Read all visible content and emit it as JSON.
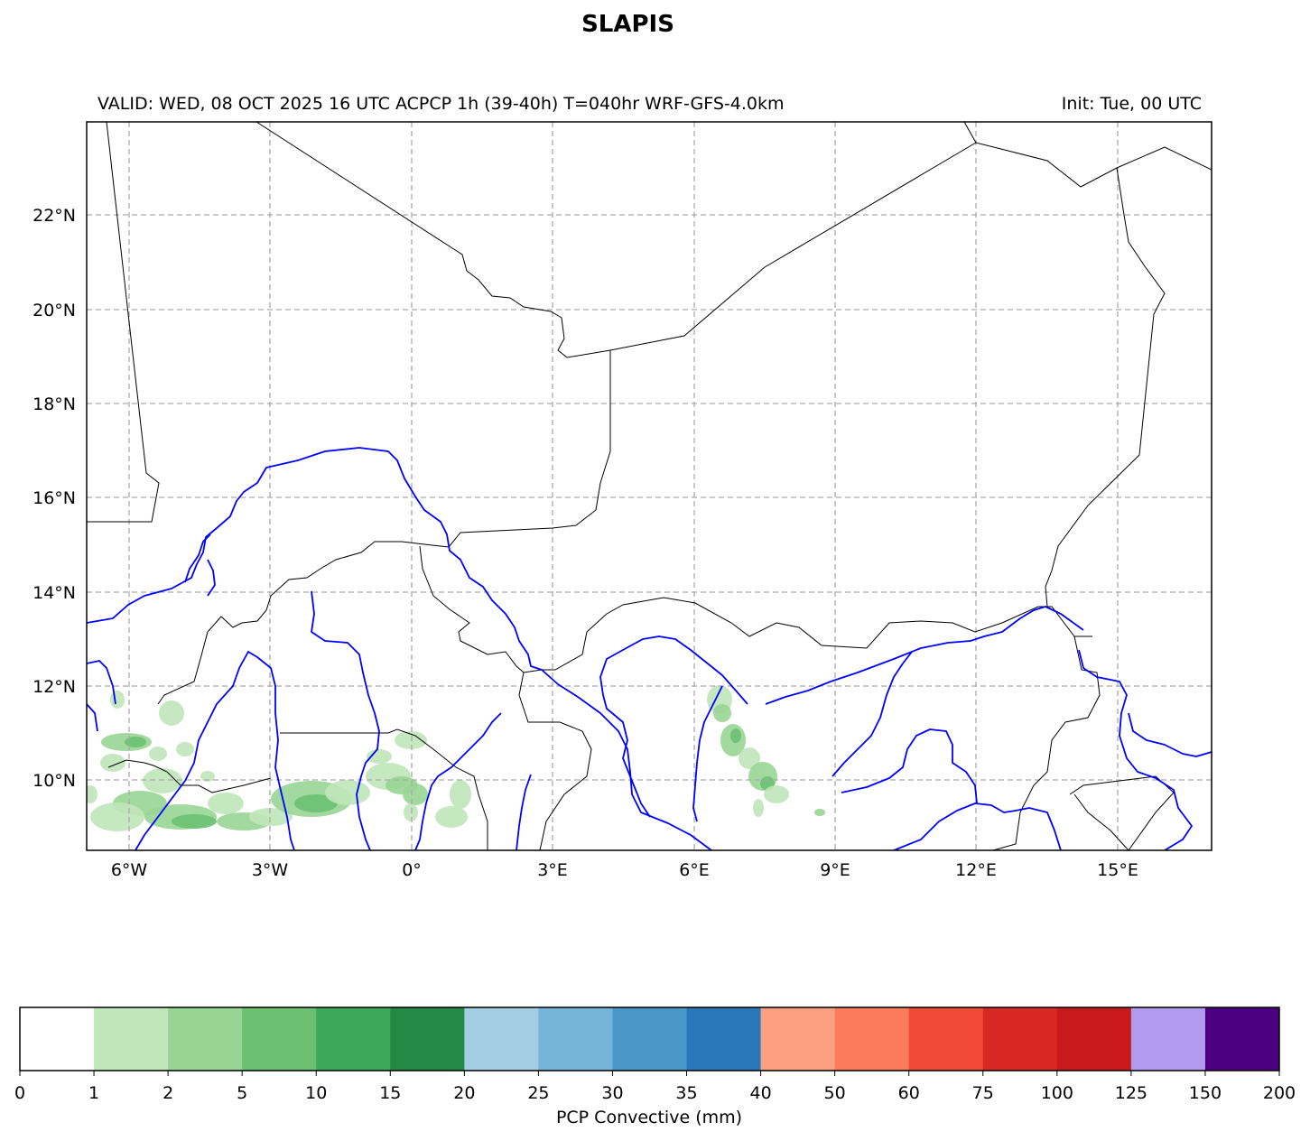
{
  "header": {
    "title": "SLAPIS",
    "valid_line": "VALID: WED, 08 OCT 2025 16 UTC   ACPCP 1h (39-40h) T=040hr WRF-GFS-4.0km",
    "init_line": "Init: Tue, 00 UTC"
  },
  "map": {
    "lon_labels": [
      "6°W",
      "3°W",
      "0°",
      "3°E",
      "6°E",
      "9°E",
      "12°E",
      "15°E"
    ],
    "lat_labels": [
      "22°N",
      "20°N",
      "18°N",
      "16°N",
      "14°N",
      "12°N",
      "10°N"
    ],
    "extent": {
      "lon": [
        -6.9,
        17.0
      ],
      "lat": [
        8.5,
        24.0
      ]
    },
    "gridlines": true,
    "border_color": "#000000",
    "river_color": "#0000ff",
    "precip_color_light": "#c0e6b9",
    "precip_color_mid": "#98d594",
    "precip_color_dark": "#6cc072"
  },
  "colorbar": {
    "label": "PCP Convective (mm)",
    "ticks": [
      "0",
      "1",
      "2",
      "5",
      "10",
      "15",
      "20",
      "25",
      "30",
      "35",
      "40",
      "50",
      "60",
      "75",
      "100",
      "125",
      "150",
      "200"
    ],
    "colors": [
      "#ffffff",
      "#c0e6b9",
      "#98d594",
      "#6cc072",
      "#3da75a",
      "#228a44",
      "#a5cde3",
      "#76b4d8",
      "#4a98c9",
      "#2a78b9",
      "#fca082",
      "#fc7b5c",
      "#f14b37",
      "#d92723",
      "#c81a1c",
      "#b29af0",
      "#4b0082"
    ]
  }
}
